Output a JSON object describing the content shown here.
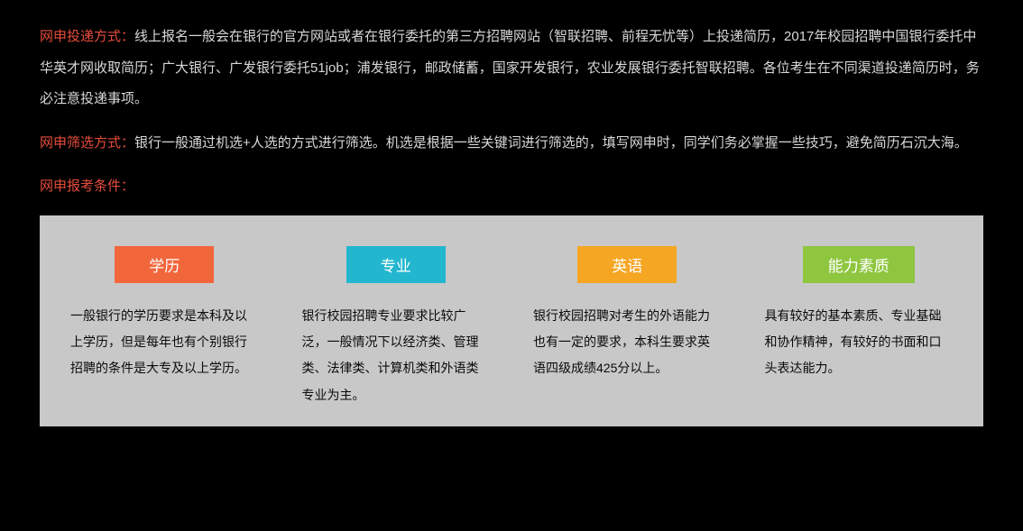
{
  "paragraphs": {
    "p1": {
      "label": "网申投递方式：",
      "text": "线上报名一般会在银行的官方网站或者在银行委托的第三方招聘网站（智联招聘、前程无忧等）上投递简历，2017年校园招聘中国银行委托中华英才网收取简历；广大银行、广发银行委托51job；浦发银行，邮政储蓄，国家开发银行，农业发展银行委托智联招聘。各位考生在不同渠道投递简历时，务必注意投递事项。"
    },
    "p2": {
      "label": "网申筛选方式：",
      "text": "银行一般通过机选+人选的方式进行筛选。机选是根据一些关键词进行筛选的，填写网申时，同学们务必掌握一些技巧，避免简历石沉大海。"
    },
    "p3": {
      "label": "网申报考条件：",
      "text": ""
    }
  },
  "colors": {
    "label_red": "#e74c3c",
    "body_text": "#d8d8d8",
    "card_bg": "#c8c8c8",
    "badge1": "#f2663c",
    "badge2": "#22b7cf",
    "badge3": "#f5a623",
    "badge4": "#8ec63f",
    "card_text": "#0a0a0a"
  },
  "cards": [
    {
      "title": "学历",
      "body": "一般银行的学历要求是本科及以上学历，但是每年也有个别银行招聘的条件是大专及以上学历。"
    },
    {
      "title": "专业",
      "body": "银行校园招聘专业要求比较广泛，一般情况下以经济类、管理类、法律类、计算机类和外语类专业为主。"
    },
    {
      "title": "英语",
      "body": "银行校园招聘对考生的外语能力也有一定的要求，本科生要求英语四级成绩425分以上。"
    },
    {
      "title": "能力素质",
      "body": "具有较好的基本素质、专业基础和协作精神，有较好的书面和口头表达能力。"
    }
  ]
}
